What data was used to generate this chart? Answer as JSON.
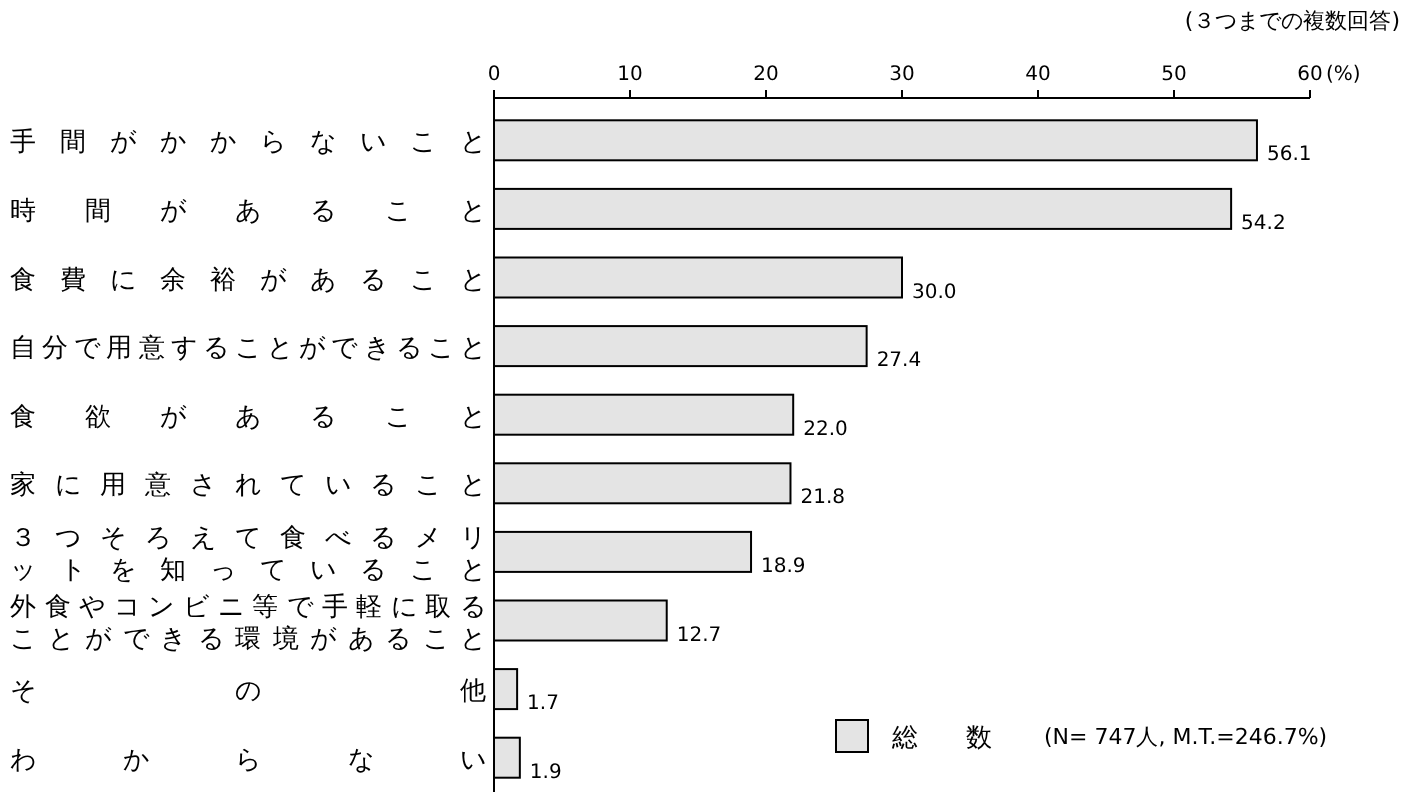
{
  "chart_data": {
    "type": "bar",
    "orientation": "horizontal",
    "categories": [
      "手間がかからないこと",
      "時間があること",
      "食費に余裕があること",
      "自分で用意することができること",
      "食欲があること",
      "家に用意されていること",
      "３つそろえて食べるメリットを知っていること",
      "外食やコンビニ等で手軽に取ることができる環境があること",
      "その他",
      "わからない"
    ],
    "series": [
      {
        "name": "総数",
        "color": "#e4e4e4",
        "values": [
          56.1,
          54.2,
          30.0,
          27.4,
          22.0,
          21.8,
          18.9,
          12.7,
          1.7,
          1.9
        ],
        "value_labels": [
          "56.1",
          "54.2",
          "30.0",
          "27.4",
          "22.0",
          "21.8",
          "18.9",
          "12.7",
          "1.7",
          "1.9"
        ]
      }
    ],
    "xlim": [
      0,
      60
    ],
    "xticks": [
      0,
      10,
      20,
      30,
      40,
      50,
      60
    ],
    "xlabel": "(%)",
    "legend": "bottom right",
    "annotations": [
      "(３つまでの複数回答)",
      "(N= 747人, M.T.=246.7%)"
    ]
  }
}
